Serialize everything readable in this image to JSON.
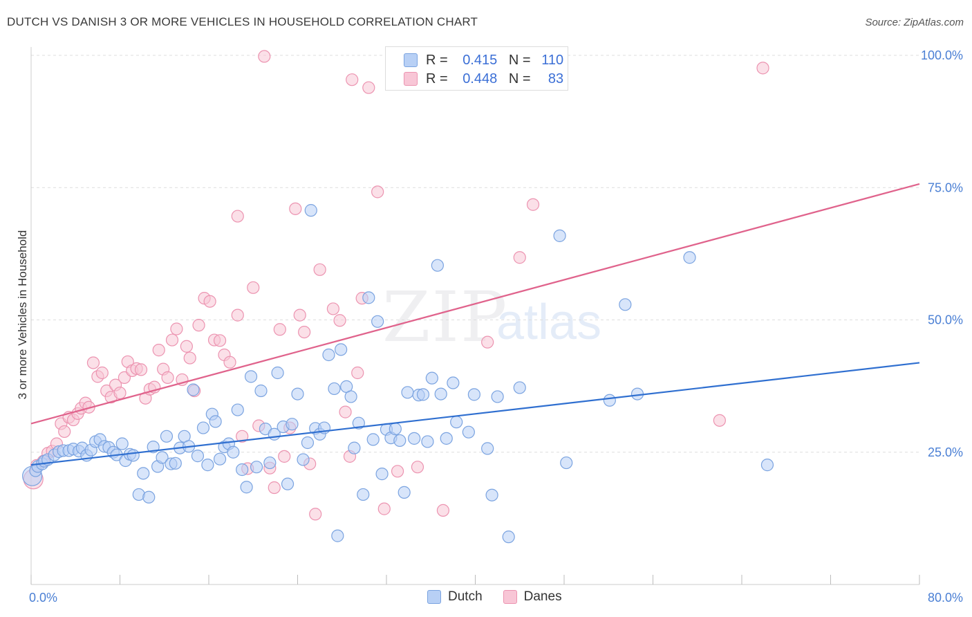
{
  "header": {
    "title": "DUTCH VS DANISH 3 OR MORE VEHICLES IN HOUSEHOLD CORRELATION CHART",
    "source": "Source: ZipAtlas.com"
  },
  "watermark": {
    "zip": "ZIP",
    "atlas": "atlas"
  },
  "legend": {
    "rows": [
      {
        "r_label": "R =",
        "r_value": "0.415",
        "n_label": "N =",
        "n_value": "110"
      },
      {
        "r_label": "R =",
        "r_value": "0.448",
        "n_label": "N =",
        "n_value": "83"
      }
    ]
  },
  "bottom_legend": {
    "dutch": "Dutch",
    "danes": "Danes"
  },
  "colors": {
    "dutch_fill": "#b8d0f5",
    "dutch_stroke": "#7aa3e0",
    "dutch_line": "#2f6fd0",
    "danes_fill": "#f8c6d6",
    "danes_stroke": "#ec93b0",
    "danes_line": "#e0638c",
    "grid": "#dddddd",
    "tick_text": "#4a7fd4"
  },
  "chart_data": {
    "type": "scatter",
    "title": "DUTCH VS DANISH 3 OR MORE VEHICLES IN HOUSEHOLD CORRELATION CHART",
    "xlabel": "",
    "ylabel": "3 or more Vehicles in Household",
    "xlim": [
      0,
      80
    ],
    "ylim": [
      0,
      100
    ],
    "x_tick_labels": [
      "0.0%",
      "80.0%"
    ],
    "y_ticks": [
      {
        "value": 25,
        "label": "25.0%"
      },
      {
        "value": 50,
        "label": "50.0%"
      },
      {
        "value": 75,
        "label": "75.0%"
      },
      {
        "value": 100,
        "label": "100.0%"
      }
    ],
    "grid": true,
    "legend_position": "top-center",
    "series": [
      {
        "name": "Dutch",
        "r": 0.415,
        "n": 110,
        "trend": {
          "x": [
            0,
            80
          ],
          "y": [
            22.6,
            41.9
          ]
        },
        "points": [
          [
            0.1,
            20.5
          ],
          [
            0.4,
            21.5
          ],
          [
            0.6,
            22.3
          ],
          [
            1.0,
            22.8
          ],
          [
            1.2,
            23.3
          ],
          [
            1.5,
            23.6
          ],
          [
            2.1,
            24.5
          ],
          [
            2.5,
            25.1
          ],
          [
            2.9,
            25.3
          ],
          [
            3.4,
            25.3
          ],
          [
            3.8,
            25.6
          ],
          [
            4.3,
            25.2
          ],
          [
            4.6,
            25.8
          ],
          [
            5.0,
            24.4
          ],
          [
            5.4,
            25.4
          ],
          [
            5.8,
            27.0
          ],
          [
            6.2,
            27.4
          ],
          [
            6.6,
            26.1
          ],
          [
            7.0,
            25.9
          ],
          [
            7.4,
            25.0
          ],
          [
            7.7,
            24.5
          ],
          [
            8.2,
            26.6
          ],
          [
            8.5,
            23.4
          ],
          [
            8.9,
            24.6
          ],
          [
            9.2,
            24.4
          ],
          [
            9.7,
            17.0
          ],
          [
            10.1,
            21.0
          ],
          [
            10.6,
            16.5
          ],
          [
            11.0,
            26.0
          ],
          [
            11.4,
            22.3
          ],
          [
            11.8,
            24.0
          ],
          [
            12.2,
            28.0
          ],
          [
            12.6,
            22.8
          ],
          [
            13.0,
            22.9
          ],
          [
            13.4,
            25.8
          ],
          [
            13.8,
            28.0
          ],
          [
            14.2,
            26.1
          ],
          [
            14.6,
            36.8
          ],
          [
            15.0,
            24.3
          ],
          [
            15.5,
            29.6
          ],
          [
            15.9,
            22.6
          ],
          [
            16.3,
            32.2
          ],
          [
            16.6,
            30.8
          ],
          [
            17.0,
            23.7
          ],
          [
            17.4,
            26.0
          ],
          [
            17.8,
            26.6
          ],
          [
            18.2,
            25.0
          ],
          [
            18.6,
            33.0
          ],
          [
            19.0,
            21.7
          ],
          [
            19.4,
            18.4
          ],
          [
            19.8,
            39.3
          ],
          [
            20.3,
            22.2
          ],
          [
            20.7,
            36.6
          ],
          [
            21.1,
            29.4
          ],
          [
            21.5,
            23.0
          ],
          [
            21.9,
            28.4
          ],
          [
            22.2,
            40.0
          ],
          [
            22.7,
            29.8
          ],
          [
            23.1,
            19.0
          ],
          [
            23.5,
            30.3
          ],
          [
            24.0,
            36.0
          ],
          [
            24.5,
            23.6
          ],
          [
            24.9,
            26.8
          ],
          [
            25.2,
            70.7
          ],
          [
            25.6,
            29.5
          ],
          [
            26.0,
            28.4
          ],
          [
            26.4,
            29.6
          ],
          [
            26.8,
            43.4
          ],
          [
            27.3,
            37.0
          ],
          [
            27.6,
            9.2
          ],
          [
            27.9,
            44.4
          ],
          [
            28.4,
            37.4
          ],
          [
            28.8,
            35.5
          ],
          [
            29.1,
            25.8
          ],
          [
            29.5,
            30.5
          ],
          [
            29.9,
            17.0
          ],
          [
            30.4,
            54.2
          ],
          [
            30.8,
            27.4
          ],
          [
            31.2,
            49.7
          ],
          [
            31.6,
            20.9
          ],
          [
            32.0,
            29.3
          ],
          [
            32.4,
            27.7
          ],
          [
            32.8,
            29.4
          ],
          [
            33.2,
            27.2
          ],
          [
            33.6,
            17.4
          ],
          [
            33.9,
            36.3
          ],
          [
            34.5,
            27.6
          ],
          [
            34.9,
            35.8
          ],
          [
            35.3,
            35.9
          ],
          [
            35.7,
            27.0
          ],
          [
            36.1,
            39.0
          ],
          [
            36.6,
            60.3
          ],
          [
            36.9,
            36.0
          ],
          [
            37.4,
            27.6
          ],
          [
            38.0,
            38.1
          ],
          [
            38.3,
            30.7
          ],
          [
            39.4,
            28.8
          ],
          [
            39.9,
            35.9
          ],
          [
            41.1,
            25.7
          ],
          [
            41.5,
            16.9
          ],
          [
            42.0,
            35.5
          ],
          [
            43.0,
            9.0
          ],
          [
            44.0,
            37.2
          ],
          [
            47.6,
            65.9
          ],
          [
            48.2,
            23.0
          ],
          [
            52.1,
            34.8
          ],
          [
            53.5,
            52.9
          ],
          [
            54.6,
            36.0
          ],
          [
            59.3,
            61.8
          ],
          [
            66.3,
            22.6
          ]
        ]
      },
      {
        "name": "Danes",
        "r": 0.448,
        "n": 83,
        "trend": {
          "x": [
            0,
            80
          ],
          "y": [
            30.4,
            75.7
          ]
        },
        "points": [
          [
            0.2,
            19.9
          ],
          [
            0.5,
            22.5
          ],
          [
            1.1,
            23.3
          ],
          [
            1.5,
            24.8
          ],
          [
            1.9,
            25.2
          ],
          [
            2.3,
            26.6
          ],
          [
            2.7,
            30.4
          ],
          [
            3.0,
            28.9
          ],
          [
            3.4,
            31.6
          ],
          [
            3.8,
            31.1
          ],
          [
            4.2,
            32.3
          ],
          [
            4.5,
            33.3
          ],
          [
            4.9,
            34.3
          ],
          [
            5.2,
            33.5
          ],
          [
            5.6,
            41.9
          ],
          [
            6.0,
            39.3
          ],
          [
            6.4,
            40.0
          ],
          [
            6.8,
            36.6
          ],
          [
            7.2,
            35.4
          ],
          [
            7.6,
            37.7
          ],
          [
            8.0,
            36.2
          ],
          [
            8.4,
            39.1
          ],
          [
            8.7,
            42.1
          ],
          [
            9.1,
            40.4
          ],
          [
            9.5,
            40.8
          ],
          [
            9.9,
            40.6
          ],
          [
            10.3,
            35.2
          ],
          [
            10.7,
            36.9
          ],
          [
            11.1,
            37.3
          ],
          [
            11.5,
            44.3
          ],
          [
            11.9,
            40.7
          ],
          [
            12.3,
            39.1
          ],
          [
            12.7,
            46.2
          ],
          [
            13.1,
            48.3
          ],
          [
            13.6,
            38.7
          ],
          [
            14.0,
            45.0
          ],
          [
            14.3,
            42.8
          ],
          [
            14.7,
            36.6
          ],
          [
            15.1,
            49.0
          ],
          [
            15.6,
            54.1
          ],
          [
            16.1,
            53.5
          ],
          [
            16.5,
            46.2
          ],
          [
            17.0,
            46.1
          ],
          [
            17.4,
            43.4
          ],
          [
            17.9,
            42.0
          ],
          [
            18.6,
            50.9
          ],
          [
            18.6,
            69.6
          ],
          [
            19.0,
            28.0
          ],
          [
            19.5,
            21.9
          ],
          [
            20.0,
            56.1
          ],
          [
            20.5,
            30.0
          ],
          [
            21.0,
            99.8
          ],
          [
            21.5,
            22.0
          ],
          [
            21.9,
            18.3
          ],
          [
            22.4,
            48.2
          ],
          [
            22.8,
            24.2
          ],
          [
            23.3,
            29.6
          ],
          [
            23.8,
            71.0
          ],
          [
            24.2,
            50.9
          ],
          [
            24.6,
            47.7
          ],
          [
            25.1,
            22.8
          ],
          [
            25.6,
            13.3
          ],
          [
            26.0,
            59.5
          ],
          [
            27.2,
            52.1
          ],
          [
            27.8,
            49.9
          ],
          [
            28.3,
            32.6
          ],
          [
            28.7,
            24.2
          ],
          [
            28.9,
            95.4
          ],
          [
            29.4,
            40.0
          ],
          [
            29.8,
            54.1
          ],
          [
            30.4,
            93.9
          ],
          [
            31.2,
            74.2
          ],
          [
            31.8,
            14.3
          ],
          [
            33.0,
            21.4
          ],
          [
            34.8,
            22.2
          ],
          [
            35.0,
            100.0
          ],
          [
            35.8,
            100.0
          ],
          [
            37.1,
            14.0
          ],
          [
            41.1,
            45.8
          ],
          [
            44.0,
            61.8
          ],
          [
            45.2,
            71.8
          ],
          [
            62.0,
            31.0
          ],
          [
            65.9,
            97.6
          ]
        ]
      }
    ]
  }
}
